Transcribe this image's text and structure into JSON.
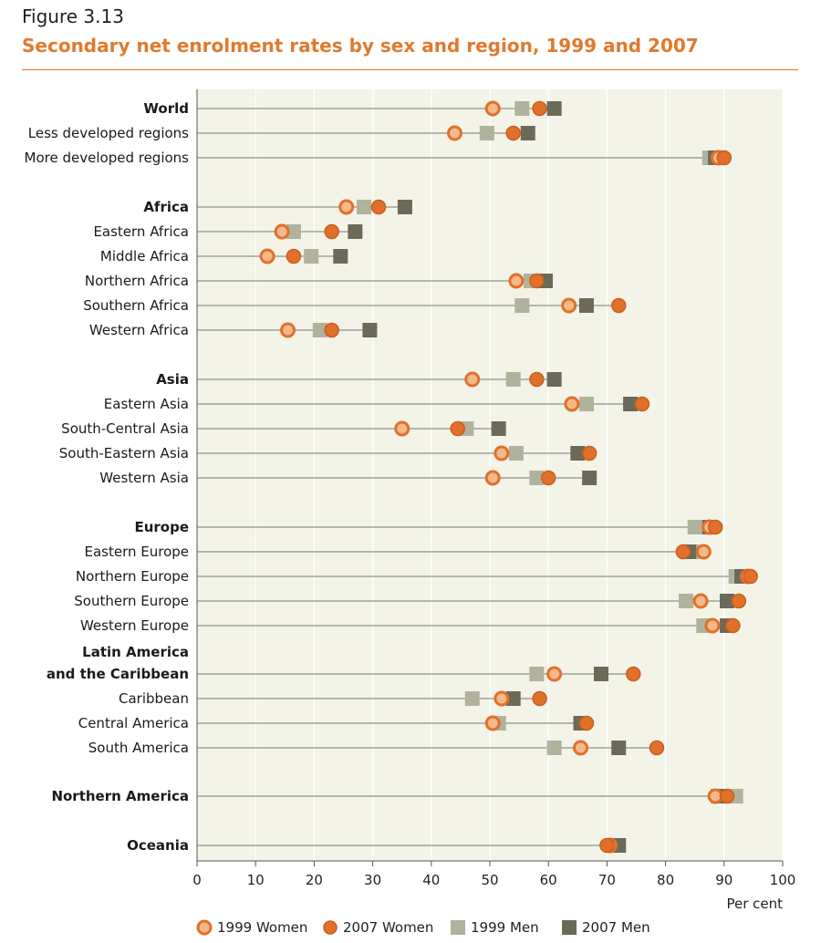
{
  "figure": {
    "label": "Figure 3.13",
    "title": "Secondary net enrolment rates by sex and region, 1999 and 2007"
  },
  "colors": {
    "women_1999_fill": "#f5b88a",
    "women_1999_stroke": "#e0702a",
    "women_2007": "#e0702a",
    "men_1999": "#b0b29c",
    "men_2007": "#6b6a58",
    "plot_bg": "#f3f3e8",
    "title_accent": "#e07a2e"
  },
  "chart_data": {
    "type": "scatter",
    "title": "Secondary net enrolment rates by sex and region, 1999 and 2007",
    "xlabel": "Per cent",
    "xlim": [
      0,
      100
    ],
    "xticks": [
      0,
      10,
      20,
      30,
      40,
      50,
      60,
      70,
      80,
      90,
      100
    ],
    "grid": true,
    "legend_position": "bottom",
    "series_order": [
      "1999 Women",
      "2007 Women",
      "1999 Men",
      "2007 Men"
    ],
    "rows": [
      {
        "label": "World",
        "bold": true,
        "w1999": 50.5,
        "w2007": 58.5,
        "m1999": 55.5,
        "m2007": 61
      },
      {
        "label": "Less developed regions",
        "bold": false,
        "w1999": 44,
        "w2007": 54,
        "m1999": 49.5,
        "m2007": 56.5
      },
      {
        "label": "More developed regions",
        "bold": false,
        "w1999": 89,
        "w2007": 90,
        "m1999": 87.5,
        "m2007": 88.5
      },
      {
        "label": "Africa",
        "bold": true,
        "w1999": 25.5,
        "w2007": 31,
        "m1999": 28.5,
        "m2007": 35.5
      },
      {
        "label": "Eastern Africa",
        "bold": false,
        "w1999": 14.5,
        "w2007": 23,
        "m1999": 16.5,
        "m2007": 27
      },
      {
        "label": "Middle Africa",
        "bold": false,
        "w1999": 12,
        "w2007": 16.5,
        "m1999": 19.5,
        "m2007": 24.5
      },
      {
        "label": "Northern Africa",
        "bold": false,
        "w1999": 54.5,
        "w2007": 58,
        "m1999": 57,
        "m2007": 59.5
      },
      {
        "label": "Southern Africa",
        "bold": false,
        "w1999": 63.5,
        "w2007": 72,
        "m1999": 55.5,
        "m2007": 66.5
      },
      {
        "label": "Western Africa",
        "bold": false,
        "w1999": 15.5,
        "w2007": 23,
        "m1999": 21,
        "m2007": 29.5
      },
      {
        "label": "Asia",
        "bold": true,
        "w1999": 47,
        "w2007": 58,
        "m1999": 54,
        "m2007": 61
      },
      {
        "label": "Eastern Asia",
        "bold": false,
        "w1999": 64,
        "w2007": 76,
        "m1999": 66.5,
        "m2007": 74
      },
      {
        "label": "South-Central Asia",
        "bold": false,
        "w1999": 35,
        "w2007": 44.5,
        "m1999": 46,
        "m2007": 51.5
      },
      {
        "label": "South-Eastern Asia",
        "bold": false,
        "w1999": 52,
        "w2007": 67,
        "m1999": 54.5,
        "m2007": 65
      },
      {
        "label": "Western Asia",
        "bold": false,
        "w1999": 50.5,
        "w2007": 60,
        "m1999": 58,
        "m2007": 67
      },
      {
        "label": "Europe",
        "bold": true,
        "w1999": 87.5,
        "w2007": 88.5,
        "m1999": 85,
        "m2007": 87.5
      },
      {
        "label": "Eastern Europe",
        "bold": false,
        "w1999": 86.5,
        "w2007": 83,
        "m1999": 84.5,
        "m2007": 84
      },
      {
        "label": "Northern Europe",
        "bold": false,
        "w1999": 94,
        "w2007": 94.5,
        "m1999": 92,
        "m2007": 93
      },
      {
        "label": "Southern Europe",
        "bold": false,
        "w1999": 86,
        "w2007": 92.5,
        "m1999": 83.5,
        "m2007": 90.5
      },
      {
        "label": "Western Europe",
        "bold": false,
        "w1999": 88,
        "w2007": 91.5,
        "m1999": 86.5,
        "m2007": 90.5
      },
      {
        "label": "Latin America\nand the Caribbean",
        "bold": true,
        "w1999": 61,
        "w2007": 74.5,
        "m1999": 58,
        "m2007": 69
      },
      {
        "label": "Caribbean",
        "bold": false,
        "w1999": 52,
        "w2007": 58.5,
        "m1999": 47,
        "m2007": 54
      },
      {
        "label": "Central America",
        "bold": false,
        "w1999": 50.5,
        "w2007": 66.5,
        "m1999": 51.5,
        "m2007": 65.5
      },
      {
        "label": "South America",
        "bold": false,
        "w1999": 65.5,
        "w2007": 78.5,
        "m1999": 61,
        "m2007": 72
      },
      {
        "label": "Northern America",
        "bold": true,
        "w1999": 88.5,
        "w2007": 90.5,
        "m1999": 92,
        "m2007": 89
      },
      {
        "label": "Oceania",
        "bold": true,
        "w1999": 70.5,
        "w2007": 70,
        "m1999": 71,
        "m2007": 72
      }
    ]
  },
  "legend": {
    "items": [
      {
        "key": "w1999",
        "label": "1999 Women"
      },
      {
        "key": "w2007",
        "label": "2007 Women"
      },
      {
        "key": "m1999",
        "label": "1999 Men"
      },
      {
        "key": "m2007",
        "label": "2007 Men"
      }
    ]
  }
}
